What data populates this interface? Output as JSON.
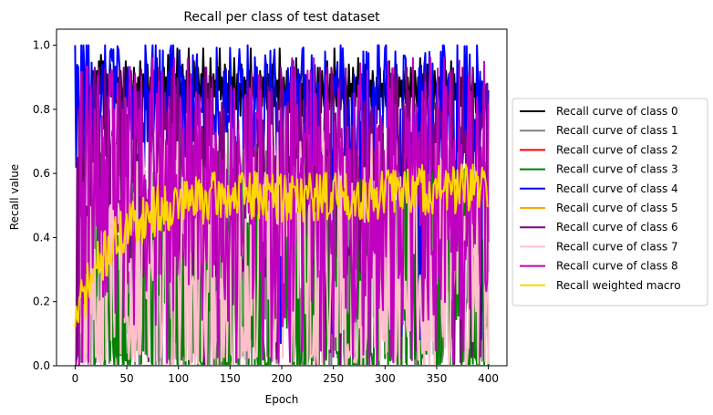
{
  "chart_data": {
    "type": "line",
    "title": "Recall per class of test dataset",
    "xlabel": "Epoch",
    "ylabel": "Recall value",
    "xlim": [
      -18,
      418
    ],
    "ylim": [
      0,
      1.05
    ],
    "xticks": [
      0,
      50,
      100,
      150,
      200,
      250,
      300,
      350,
      400
    ],
    "yticks": [
      0.0,
      0.2,
      0.4,
      0.6,
      0.8,
      1.0
    ],
    "grid": false,
    "legend_placement": "outside-right",
    "epochs": 400,
    "series": [
      {
        "name": "Recall curve of class 0",
        "color": "#000000",
        "values": [
          0.0,
          0.0,
          0.0,
          0.12,
          0.57,
          0.47,
          0.8,
          0.55,
          0.82,
          0.86,
          0.72,
          0.78,
          0.9,
          0.73,
          0.79,
          0.82,
          0.68,
          0.92,
          0.86,
          0.79,
          0.75,
          0.92,
          0.8,
          0.95,
          0.85,
          0.97,
          0.88,
          0.95,
          0.82,
          0.96,
          0.88,
          0.91,
          0.79,
          0.87,
          0.94,
          0.84,
          0.9,
          0.78,
          0.88,
          0.93,
          0.82,
          0.9,
          0.86,
          0.8,
          0.92,
          0.86,
          0.78,
          0.89,
          0.84,
          0.95,
          0.81,
          0.9,
          0.86,
          0.79,
          0.92,
          0.85,
          0.8,
          0.93,
          0.84,
          0.88,
          0.78,
          0.9,
          0.82,
          0.95,
          0.86,
          0.79,
          0.91,
          0.84,
          0.89,
          0.8,
          0.94,
          0.85,
          0.79,
          0.9,
          0.83,
          0.87,
          0.78,
          0.92,
          0.84,
          0.96,
          0.82,
          0.88,
          0.8,
          0.91,
          0.85,
          0.79,
          0.93,
          0.84,
          0.9,
          0.81,
          0.97,
          0.86,
          0.8,
          0.92,
          0.83,
          0.88,
          0.78,
          0.91,
          0.85,
          0.99,
          0.82,
          0.9,
          0.86,
          0.8,
          0.94,
          0.84,
          0.89,
          0.79,
          0.92,
          0.86,
          0.99,
          0.83,
          0.9,
          0.85,
          0.8,
          0.95,
          0.84,
          0.88,
          0.79,
          0.93,
          0.86,
          0.81,
          0.91,
          0.84,
          0.99,
          0.85,
          0.8,
          0.9,
          0.83,
          0.88,
          0.78,
          0.96,
          0.85,
          0.81,
          0.91,
          0.84,
          0.89,
          0.8,
          0.93,
          0.86,
          0.99,
          0.83,
          0.9,
          0.85,
          0.8,
          0.94,
          0.84,
          0.88,
          0.79,
          0.92,
          0.86,
          0.81,
          0.9,
          0.84,
          0.96,
          0.85,
          0.8,
          0.91,
          0.83,
          0.88,
          0.78,
          0.94,
          0.85,
          0.81,
          0.9,
          0.84,
          0.89,
          0.8,
          0.92,
          0.86,
          0.99,
          0.83,
          0.9,
          0.85,
          0.8,
          0.93,
          0.84,
          0.88,
          0.07,
          0.92,
          0.86,
          0.81,
          0.9,
          0.84,
          0.95,
          0.85,
          0.8,
          0.91,
          0.83,
          0.88,
          0.78,
          0.94,
          0.85,
          0.81,
          0.9,
          0.84,
          0.89,
          0.8,
          0.99,
          0.86,
          0.82,
          0.83,
          0.9,
          0.85,
          0.8,
          0.92,
          0.84,
          0.88,
          0.79,
          0.93,
          0.86,
          0.81,
          0.9,
          0.84,
          0.96,
          0.85,
          0.8,
          0.91,
          0.83,
          0.88,
          0.78,
          0.94,
          0.85,
          0.81,
          0.9,
          0.84,
          0.89,
          0.8,
          0.92,
          0.86,
          0.82,
          0.83,
          0.9,
          0.85,
          0.8,
          0.93,
          0.84,
          0.88,
          0.79,
          0.92,
          0.86,
          0.81,
          0.9,
          0.03,
          0.95,
          0.85,
          0.8,
          0.91,
          0.83,
          0.88,
          0.78,
          0.99,
          0.85,
          0.81,
          0.9,
          0.84,
          0.89,
          0.8,
          0.92,
          0.86,
          0.82,
          0.83,
          0.9,
          0.85,
          0.8,
          0.94,
          0.84,
          0.88,
          0.79,
          0.93,
          0.86,
          0.81,
          0.9,
          0.84,
          0.96,
          0.85,
          0.8,
          0.91,
          0.83,
          0.88,
          0.78,
          0.94,
          0.85,
          0.81,
          0.9,
          0.84,
          0.89,
          0.8,
          0.92,
          0.86,
          0.82,
          0.83,
          0.9,
          0.85,
          0.8,
          0.93,
          0.84,
          0.88,
          0.79,
          0.92,
          0.86,
          0.81,
          0.9,
          0.84,
          0.95,
          0.85,
          0.8,
          0.91,
          0.83,
          0.88,
          0.78,
          0.94,
          0.85,
          0.81,
          0.9,
          0.84,
          0.89,
          0.8,
          0.92,
          0.86,
          0.82,
          0.83,
          0.9,
          0.85,
          0.8,
          0.93,
          0.84,
          0.88,
          0.79,
          0.92,
          0.86,
          0.81,
          0.9,
          0.84,
          0.96,
          0.85,
          0.8,
          0.91,
          0.83,
          0.88,
          0.78,
          0.94,
          0.85,
          0.81,
          0.9,
          0.84,
          0.89,
          0.8,
          0.92,
          0.86,
          0.82,
          0.83,
          0.9,
          0.85,
          0.8,
          0.93,
          0.84,
          0.88,
          0.79,
          0.92,
          0.86,
          0.81,
          0.9,
          0.84,
          0.95,
          0.85,
          0.8,
          0.91,
          0.83,
          0.88,
          0.78,
          0.94,
          0.85,
          0.81,
          0.9,
          0.84,
          0.89,
          0.8,
          0.92,
          0.86,
          0.82,
          0.83,
          0.9,
          0.85,
          0.8,
          0.93,
          0.84,
          0.88,
          0.79,
          0.92,
          0.86,
          0.81,
          0.9,
          0.84,
          0.78,
          0.74,
          0.72
        ]
      },
      {
        "name": "Recall curve of class 1",
        "color": "#808080",
        "gen": {
          "seed": 11,
          "base": 0.33,
          "amp": 0.42,
          "zero_start": 2,
          "min": 0.0,
          "max": 0.9,
          "zero_prob": 0.18
        }
      },
      {
        "name": "Recall curve of class 2",
        "color": "#ff0000",
        "gen": {
          "constant": 0.0
        }
      },
      {
        "name": "Recall curve of class 3",
        "color": "#008000",
        "gen": {
          "seed": 23,
          "base": 0.3,
          "amp": 0.45,
          "zero_start": 20,
          "min": 0.0,
          "max": 0.92,
          "zero_prob": 0.16
        }
      },
      {
        "name": "Recall curve of class 4",
        "color": "#0000ff",
        "gen": {
          "seed": 31,
          "base": 0.8,
          "amp": 0.22,
          "zero_start": 0,
          "min": 0.07,
          "max": 1.0,
          "zero_prob": 0.03,
          "start": 1.0
        }
      },
      {
        "name": "Recall curve of class 5",
        "color": "#ffa500",
        "gen": {
          "constant": 0.0
        }
      },
      {
        "name": "Recall curve of class 6",
        "color": "#800080",
        "gen": {
          "seed": 47,
          "base": 0.62,
          "amp": 0.35,
          "zero_start": 2,
          "min": 0.0,
          "max": 0.93,
          "zero_prob": 0.05
        }
      },
      {
        "name": "Recall curve of class 7",
        "color": "#ffc0cb",
        "gen": {
          "seed": 53,
          "base": 0.35,
          "amp": 0.4,
          "zero_start": 3,
          "min": 0.0,
          "max": 0.86,
          "zero_prob": 0.12
        }
      },
      {
        "name": "Recall curve of class 8",
        "color": "#c000c0",
        "gen": {
          "seed": 61,
          "base": 0.55,
          "amp": 0.43,
          "zero_start": 5,
          "min": 0.0,
          "max": 0.96,
          "zero_prob": 0.08
        }
      },
      {
        "name": "Recall weighted macro",
        "color": "#ffd700",
        "gen": {
          "seed": 71,
          "trend": true,
          "min": 0.12,
          "max": 0.7
        }
      }
    ]
  }
}
